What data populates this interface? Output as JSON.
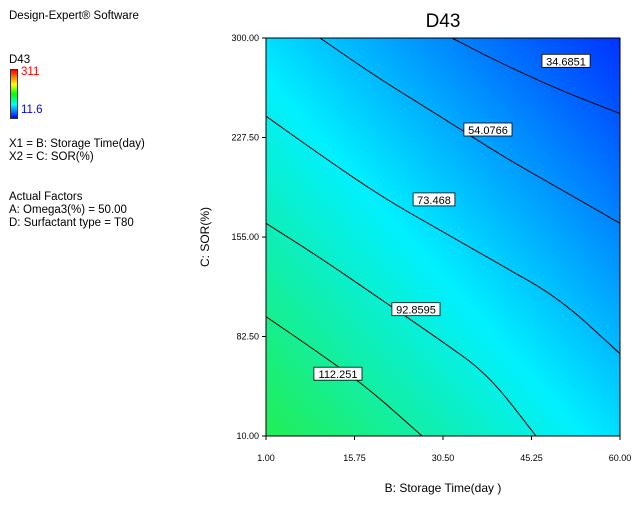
{
  "sidebar": {
    "software": "Design-Expert® Software",
    "response": "D43",
    "scale_max": "311",
    "scale_min": "11.6",
    "factor_x1": "X1 = B: Storage Time(day)",
    "factor_x2": "X2 = C: SOR(%)",
    "actual_factors_heading": "Actual Factors",
    "actual_factor_a": "A: Omega3(%) = 50.00",
    "actual_factor_d": "D: Surfactant type = T80"
  },
  "chart_data": {
    "type": "contour",
    "title": "D43",
    "xlabel": "B: Storage Time(day )",
    "ylabel": "C: SOR(%)",
    "xlim": [
      1.0,
      60.0
    ],
    "ylim": [
      10.0,
      300.0
    ],
    "xticks": [
      "1.00",
      "15.75",
      "30.50",
      "45.25",
      "60.00"
    ],
    "yticks": [
      "10.00",
      "82.50",
      "155.00",
      "227.50",
      "300.00"
    ],
    "color_scale": {
      "high": "#00ff44",
      "mid": "#00ffff",
      "low": "#0000ff"
    },
    "contours": [
      {
        "level": "112.251",
        "points": [
          [
            1.0,
            97.0
          ],
          [
            10.0,
            70.0
          ],
          [
            18.0,
            45.0
          ],
          [
            27.0,
            10.0
          ]
        ],
        "label_at": [
          13.0,
          55.0
        ]
      },
      {
        "level": "92.8595",
        "points": [
          [
            1.0,
            165.0
          ],
          [
            10.0,
            140.0
          ],
          [
            20.0,
            110.0
          ],
          [
            30.0,
            80.0
          ],
          [
            38.0,
            55.0
          ],
          [
            46.0,
            10.0
          ]
        ],
        "label_at": [
          26.0,
          102.0
        ]
      },
      {
        "level": "73.468",
        "points": [
          [
            1.0,
            243.0
          ],
          [
            10.0,
            215.0
          ],
          [
            20.0,
            185.0
          ],
          [
            30.0,
            160.0
          ],
          [
            40.0,
            135.0
          ],
          [
            50.0,
            110.0
          ],
          [
            60.0,
            70.0
          ]
        ],
        "label_at": [
          29.0,
          182.0
        ]
      },
      {
        "level": "54.0766",
        "points": [
          [
            10.0,
            300.0
          ],
          [
            20.0,
            270.0
          ],
          [
            30.0,
            243.0
          ],
          [
            40.0,
            215.0
          ],
          [
            50.0,
            190.0
          ],
          [
            60.0,
            165.0
          ]
        ],
        "label_at": [
          38.0,
          233.0
        ]
      },
      {
        "level": "34.6851",
        "points": [
          [
            32.0,
            300.0
          ],
          [
            40.0,
            282.0
          ],
          [
            50.0,
            262.0
          ],
          [
            60.0,
            245.0
          ]
        ],
        "label_at": [
          51.0,
          283.0
        ]
      }
    ]
  }
}
